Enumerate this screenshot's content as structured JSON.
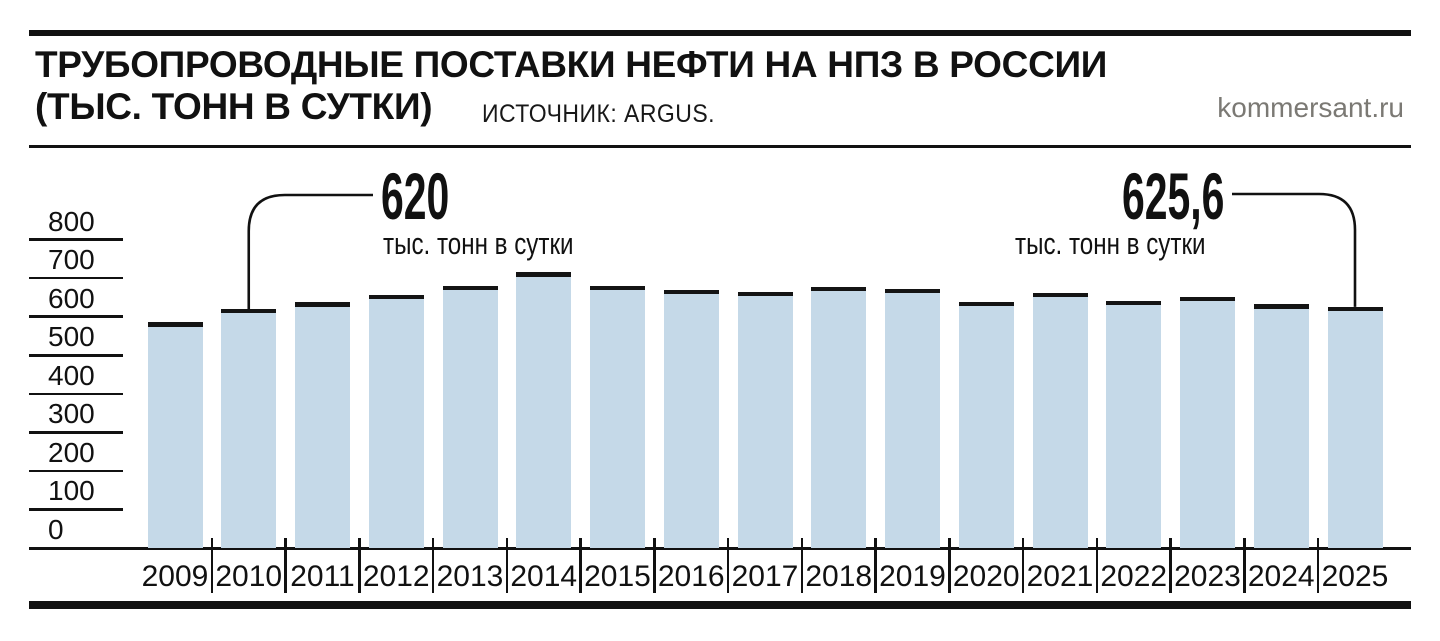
{
  "header": {
    "title_line1": "ТРУБОПРОВОДНЫЕ ПОСТАВКИ НЕФТИ НА НПЗ В РОССИИ",
    "title_line2": "(ТЫС. ТОНН В СУТКИ)",
    "source": "ИСТОЧНИК: ARGUS.",
    "site": "kommersant.ru"
  },
  "chart_data": {
    "type": "bar",
    "title": "Трубопроводные поставки нефти на НПЗ в России",
    "ylabel": "тыс. тонн в сутки",
    "xlabel": "",
    "categories": [
      "2009",
      "2010",
      "2011",
      "2012",
      "2013",
      "2014",
      "2015",
      "2016",
      "2017",
      "2018",
      "2019",
      "2020",
      "2021",
      "2022",
      "2023",
      "2024",
      "2025"
    ],
    "values": [
      585,
      620,
      637,
      657,
      680,
      715,
      680,
      670,
      665,
      678,
      673,
      639,
      662,
      641,
      652,
      632,
      625.6
    ],
    "ylim": [
      0,
      800
    ],
    "yticks": [
      800,
      700,
      600,
      500,
      400,
      300,
      200,
      100,
      0
    ],
    "grid": "left-stub-ticks",
    "legend": "none",
    "bar_color": "#c5d9e8",
    "cap_color": "#141414",
    "annotations": [
      {
        "bar": "2010",
        "value_label": "620",
        "unit_label": "тыс. тонн в сутки"
      },
      {
        "bar": "2025",
        "value_label": "625,6",
        "unit_label": "тыс. тонн в сутки"
      }
    ]
  }
}
